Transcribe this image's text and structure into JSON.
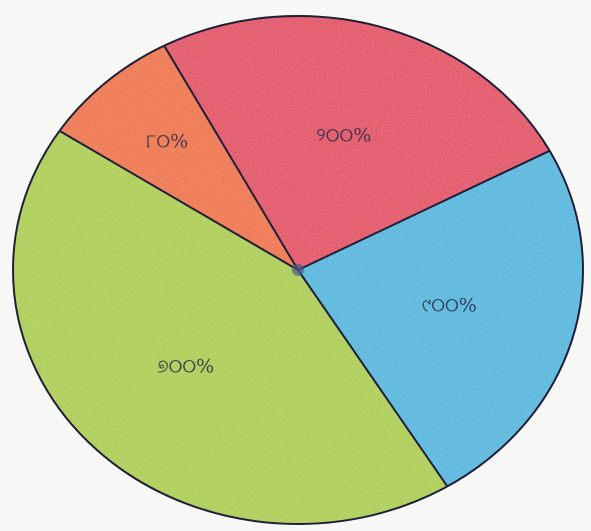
{
  "chart_data": {
    "type": "pie",
    "title": "",
    "slices": [
      {
        "label": "୨୦୦%",
        "value": 25,
        "color": "#e23a55"
      },
      {
        "label": "୯୦୦%",
        "value": 24,
        "color": "#3fb4dc"
      },
      {
        "label": "୭୦୦%",
        "value": 43,
        "color": "#a9cc3a"
      },
      {
        "label": "୮୦%",
        "value": 8,
        "color": "#ee6a2c"
      }
    ],
    "legend": "none",
    "data_labels": "inside"
  }
}
